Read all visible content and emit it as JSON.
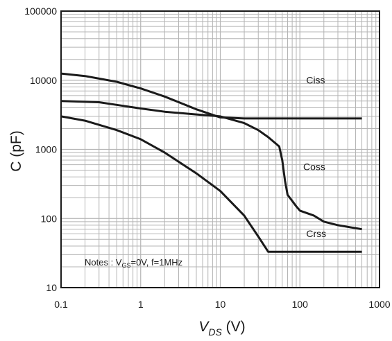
{
  "chart_data": {
    "type": "line",
    "x_scale": "log",
    "y_scale": "log",
    "xlim": [
      0.1,
      1000
    ],
    "ylim": [
      10,
      100000
    ],
    "x_ticks": [
      "0.1",
      "1",
      "10",
      "100",
      "1000"
    ],
    "y_ticks": [
      "10",
      "100",
      "1000",
      "10000",
      "100000"
    ],
    "xlabel": {
      "main": "V",
      "sub": "DS",
      "unit": " (V)"
    },
    "ylabel": "C (pF)",
    "grid": true,
    "legend": "none",
    "note": {
      "prefix": "Notes : V",
      "sub": "GS",
      "suffix": "=0V, f=1MHz"
    },
    "series": [
      {
        "name": "Ciss",
        "points": [
          [
            0.1,
            12500
          ],
          [
            0.2,
            11500
          ],
          [
            0.5,
            9500
          ],
          [
            1,
            7600
          ],
          [
            2,
            5800
          ],
          [
            5,
            3800
          ],
          [
            10,
            2900
          ],
          [
            20,
            2800
          ],
          [
            50,
            2800
          ],
          [
            100,
            2800
          ],
          [
            200,
            2800
          ],
          [
            600,
            2800
          ]
        ]
      },
      {
        "name": "Coss",
        "points": [
          [
            0.1,
            5000
          ],
          [
            0.3,
            4800
          ],
          [
            0.5,
            4400
          ],
          [
            1,
            3900
          ],
          [
            2,
            3500
          ],
          [
            5,
            3200
          ],
          [
            10,
            3000
          ],
          [
            20,
            2400
          ],
          [
            30,
            1900
          ],
          [
            40,
            1500
          ],
          [
            55,
            1100
          ],
          [
            60,
            700
          ],
          [
            65,
            350
          ],
          [
            70,
            220
          ],
          [
            80,
            180
          ],
          [
            90,
            150
          ],
          [
            100,
            130
          ],
          [
            150,
            110
          ],
          [
            200,
            90
          ],
          [
            300,
            80
          ],
          [
            600,
            70
          ]
        ]
      },
      {
        "name": "Crss",
        "points": [
          [
            0.1,
            3000
          ],
          [
            0.2,
            2600
          ],
          [
            0.5,
            1900
          ],
          [
            1,
            1400
          ],
          [
            2,
            900
          ],
          [
            5,
            450
          ],
          [
            10,
            250
          ],
          [
            20,
            110
          ],
          [
            30,
            55
          ],
          [
            40,
            33
          ],
          [
            100,
            33
          ],
          [
            200,
            33
          ],
          [
            600,
            33
          ]
        ]
      }
    ],
    "series_labels": {
      "Ciss": "Ciss",
      "Coss": "Coss",
      "Crss": "Crss"
    }
  },
  "colors": {
    "curve": "#1a1a1a",
    "grid": "#b4b4b4",
    "frame": "#1a1a1a"
  }
}
